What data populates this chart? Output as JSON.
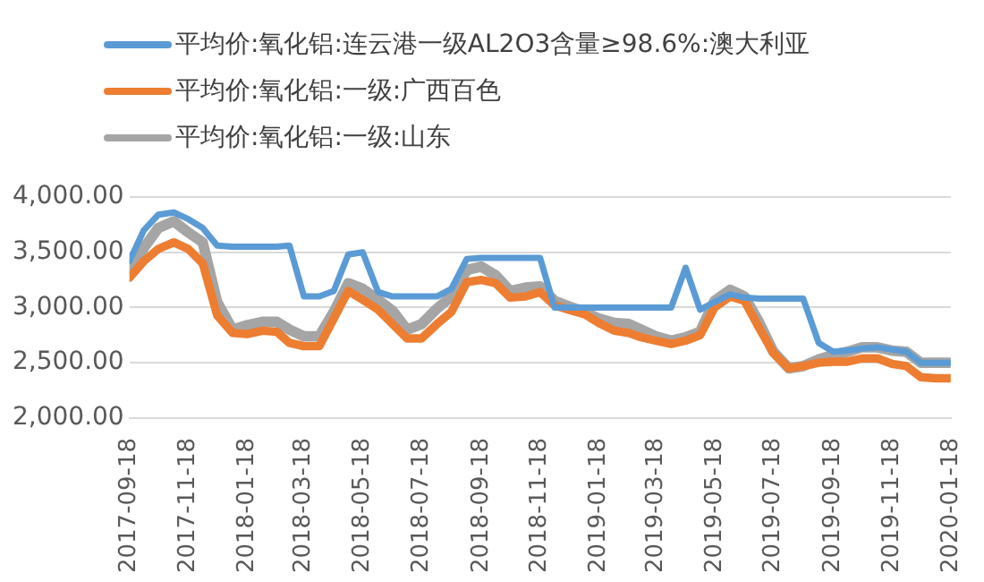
{
  "chart_data": {
    "type": "line",
    "legend": "top left",
    "grid": "y",
    "marker": "none",
    "line_style": "solid",
    "x": [
      "2017-09-18",
      "2017-10-03",
      "2017-10-18",
      "2017-11-03",
      "2017-11-18",
      "2017-12-03",
      "2017-12-18",
      "2018-01-03",
      "2018-01-18",
      "2018-02-03",
      "2018-02-18",
      "2018-03-03",
      "2018-03-18",
      "2018-04-03",
      "2018-04-18",
      "2018-05-03",
      "2018-05-18",
      "2018-06-03",
      "2018-06-18",
      "2018-07-03",
      "2018-07-18",
      "2018-08-03",
      "2018-08-18",
      "2018-09-03",
      "2018-09-18",
      "2018-10-03",
      "2018-10-18",
      "2018-11-03",
      "2018-11-18",
      "2018-12-03",
      "2018-12-18",
      "2019-01-03",
      "2019-01-18",
      "2019-02-03",
      "2019-02-18",
      "2019-03-03",
      "2019-03-18",
      "2019-04-03",
      "2019-04-18",
      "2019-05-03",
      "2019-05-18",
      "2019-06-03",
      "2019-06-18",
      "2019-07-03",
      "2019-07-18",
      "2019-08-03",
      "2019-08-18",
      "2019-09-03",
      "2019-09-18",
      "2019-10-03",
      "2019-10-18",
      "2019-11-03",
      "2019-11-18",
      "2019-12-03",
      "2019-12-18",
      "2020-01-03",
      "2020-01-18"
    ],
    "series": [
      {
        "name": "平均价:氧化铝:连云港一级AL2O3含量≥98.6%:澳大利亚",
        "color": "#5b9bd5",
        "values": [
          3420,
          3700,
          3840,
          3860,
          3800,
          3720,
          3560,
          3550,
          3550,
          3550,
          3550,
          3560,
          3100,
          3100,
          3150,
          3480,
          3500,
          3140,
          3100,
          3100,
          3100,
          3100,
          3170,
          3440,
          3450,
          3450,
          3450,
          3450,
          3450,
          3000,
          3000,
          3000,
          3000,
          3000,
          3000,
          3000,
          3000,
          3000,
          3360,
          2980,
          3050,
          3120,
          3090,
          3080,
          3080,
          3080,
          3080,
          2680,
          2600,
          2610,
          2630,
          2640,
          2620,
          2600,
          2500,
          2500,
          2500
        ]
      },
      {
        "name": "平均价:氧化铝:一级:广西百色",
        "color": "#ed7d31",
        "values": [
          3270,
          3420,
          3530,
          3590,
          3530,
          3400,
          2930,
          2770,
          2760,
          2790,
          2780,
          2680,
          2650,
          2650,
          2900,
          3150,
          3070,
          2980,
          2850,
          2720,
          2720,
          2850,
          2960,
          3230,
          3250,
          3220,
          3090,
          3100,
          3140,
          3020,
          2980,
          2940,
          2860,
          2790,
          2770,
          2730,
          2700,
          2670,
          2700,
          2750,
          3000,
          3100,
          3060,
          2820,
          2590,
          2450,
          2470,
          2500,
          2510,
          2510,
          2540,
          2540,
          2490,
          2470,
          2370,
          2360,
          2360
        ]
      },
      {
        "name": "平均价:氧化铝:一级:山东",
        "color": "#a5a5a5",
        "values": [
          3360,
          3540,
          3720,
          3780,
          3680,
          3590,
          3050,
          2800,
          2840,
          2870,
          2870,
          2800,
          2740,
          2740,
          2960,
          3220,
          3170,
          3070,
          2970,
          2800,
          2850,
          2990,
          3100,
          3340,
          3370,
          3290,
          3150,
          3180,
          3190,
          3060,
          3010,
          2960,
          2900,
          2860,
          2850,
          2800,
          2740,
          2700,
          2730,
          2780,
          3060,
          3160,
          3100,
          2870,
          2600,
          2450,
          2470,
          2530,
          2570,
          2600,
          2640,
          2640,
          2610,
          2600,
          2500,
          2500,
          2500
        ]
      }
    ],
    "xlim": [
      "2017-09-18",
      "2020-01-18"
    ],
    "xticks": [
      "2017-09-18",
      "2017-11-18",
      "2018-01-18",
      "2018-03-18",
      "2018-05-18",
      "2018-07-18",
      "2018-09-18",
      "2018-11-18",
      "2019-01-18",
      "2019-03-18",
      "2019-05-18",
      "2019-07-18",
      "2019-09-18",
      "2019-11-18",
      "2020-01-18"
    ],
    "ylim": [
      2000,
      4000
    ],
    "yticks": [
      {
        "value": 2000,
        "label": "2,000.00"
      },
      {
        "value": 2500,
        "label": "2,500.00"
      },
      {
        "value": 3000,
        "label": "3,000.00"
      },
      {
        "value": 3500,
        "label": "3,500.00"
      },
      {
        "value": 4000,
        "label": "4,000.00"
      }
    ]
  }
}
